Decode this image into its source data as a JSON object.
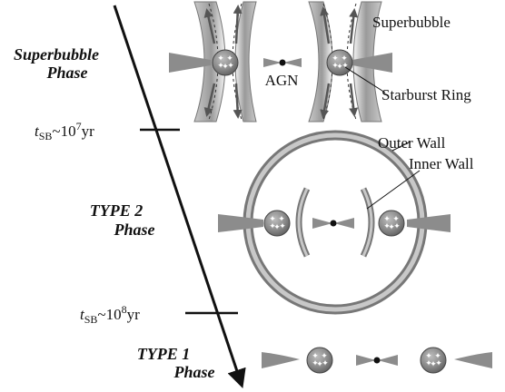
{
  "phases": {
    "superbubble": {
      "line1": "Superbubble",
      "line2": "Phase"
    },
    "type2": {
      "line1": "TYPE 2",
      "line2": "Phase"
    },
    "type1": {
      "line1": "TYPE 1",
      "line2": "Phase"
    }
  },
  "timeline": {
    "marker1": {
      "t": "t",
      "sub": "SB",
      "approx": "~10",
      "exp": "7",
      "unit": "yr"
    },
    "marker2": {
      "t": "t",
      "sub": "SB",
      "approx": "~10",
      "exp": "8",
      "unit": "yr"
    }
  },
  "labels": {
    "agn": "AGN",
    "superbubble": "Superbubble",
    "starburst_ring": "Starburst Ring",
    "outer_wall": "Outer Wall",
    "inner_wall": "Inner Wall"
  },
  "colors": {
    "ink": "#111111",
    "gray_fill": "#8c8c8c",
    "dark_gray": "#555555",
    "light_gray": "#d8d8d8"
  }
}
